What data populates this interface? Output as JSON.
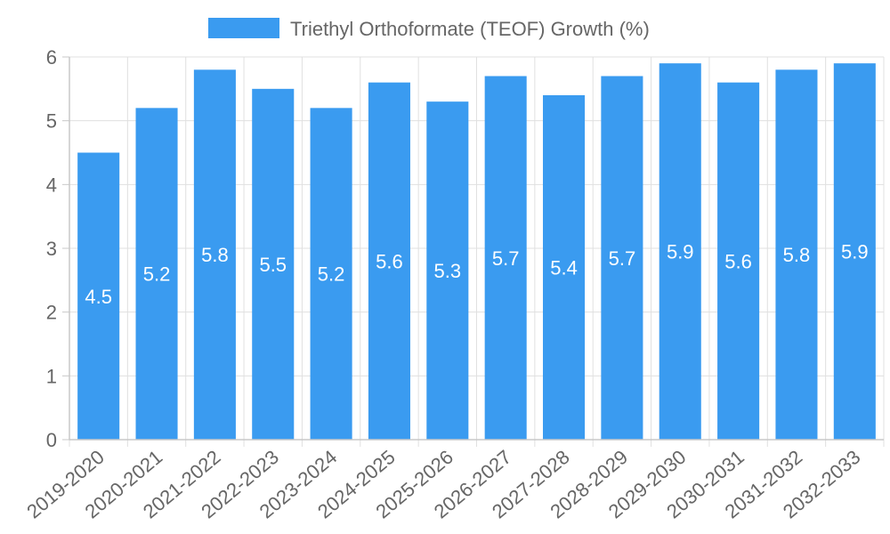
{
  "chart_data": {
    "type": "bar",
    "title": "",
    "xlabel": "",
    "ylabel": "",
    "categories": [
      "2019-2020",
      "2020-2021",
      "2021-2022",
      "2022-2023",
      "2023-2024",
      "2024-2025",
      "2025-2026",
      "2026-2027",
      "2027-2028",
      "2028-2029",
      "2029-2030",
      "2030-2031",
      "2031-2032",
      "2032-2033"
    ],
    "series": [
      {
        "name": "Triethyl Orthoformate (TEOF) Growth (%)",
        "values": [
          4.5,
          5.2,
          5.8,
          5.5,
          5.2,
          5.6,
          5.3,
          5.7,
          5.4,
          5.7,
          5.9,
          5.6,
          5.8,
          5.9
        ]
      }
    ],
    "ylim": [
      0,
      6
    ],
    "yticks": [
      0,
      1,
      2,
      3,
      4,
      5,
      6
    ],
    "grid": true,
    "legend_position": "top-center",
    "data_labels": true
  },
  "colors": {
    "bar": "#3a9bf0",
    "grid": "#e0e0e0",
    "axis": "#c8c8c8",
    "text": "#666666",
    "label": "#ffffff"
  }
}
